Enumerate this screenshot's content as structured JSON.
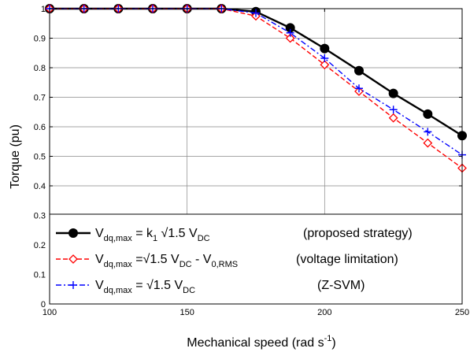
{
  "chart_data": {
    "type": "line",
    "xlabel": "Mechanical speed (rad s",
    "xlabel_sup": "-1",
    "xlabel_close": ")",
    "ylabel": "Torque (pu)",
    "xlim": [
      100,
      250
    ],
    "ylim": [
      0,
      1
    ],
    "grid": true,
    "legend_position": "bottom-right",
    "x_ticks": [
      100,
      150,
      200,
      250
    ],
    "y_ticks": [
      0,
      0.1,
      0.2,
      0.3,
      0.4,
      0.5,
      0.6,
      0.7,
      0.8,
      0.9,
      1
    ],
    "x_tick_labels": [
      "100",
      "150",
      "200",
      "250"
    ],
    "y_tick_labels": [
      "0",
      "0.1",
      "0.2",
      "0.3",
      "0.4",
      "0.5",
      "0.6",
      "0.7",
      "0.8",
      "0.9",
      "1"
    ],
    "x": [
      100,
      112.5,
      125,
      137.5,
      150,
      162.5,
      175,
      187.5,
      200,
      212.5,
      225,
      237.5,
      250
    ],
    "series": [
      {
        "name": "V dq,max = k1 √1.5 V DC (proposed strategy)",
        "color": "#000000",
        "marker": "circle",
        "dash": "solid",
        "values": [
          1,
          1,
          1,
          1,
          1,
          1,
          0.99,
          0.935,
          0.865,
          0.79,
          0.713,
          0.643,
          0.57
        ]
      },
      {
        "name": "V dq,max = √1.5 V DC - V 0,RMS (voltage limitation)",
        "color": "#ff0000",
        "marker": "diamond",
        "dash": "dashed",
        "values": [
          1,
          1,
          1,
          1,
          1,
          1,
          0.975,
          0.9,
          0.81,
          0.72,
          0.63,
          0.545,
          0.46
        ]
      },
      {
        "name": "V dq,max = √1.5 V DC (Z-SVM)",
        "color": "#0000ff",
        "marker": "plus",
        "dash": "dashdot",
        "values": [
          1,
          1,
          1,
          1,
          1,
          1,
          0.985,
          0.918,
          0.832,
          0.73,
          0.658,
          0.583,
          0.505
        ]
      }
    ],
    "legend": [
      {
        "main": "V",
        "sub": "dq,max",
        "eq": " = k",
        "sub2": "1",
        "rest": " √1.5 V",
        "sub3": "DC",
        "rest2": "",
        "sub4": "",
        "note": "(proposed strategy)"
      },
      {
        "main": "V",
        "sub": "dq,max",
        "eq": " =√1.5 V",
        "sub2": "DC",
        "rest": " - V",
        "sub3": "0,RMS",
        "rest2": "",
        "sub4": "",
        "note": "(voltage limitation)"
      },
      {
        "main": "V",
        "sub": "dq,max",
        "eq": " = √1.5 V",
        "sub2": "DC",
        "rest": "",
        "sub3": "",
        "rest2": "",
        "sub4": "",
        "note": "(Z-SVM)"
      }
    ]
  }
}
